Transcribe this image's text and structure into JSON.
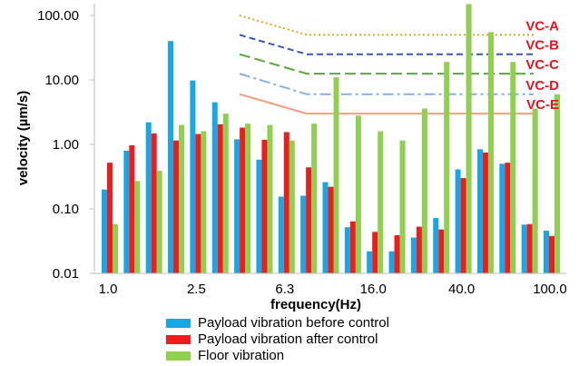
{
  "chart_data": {
    "type": "bar",
    "xlabel": "frequency(Hz)",
    "ylabel": "velocity (µm/s)",
    "yscale": "log",
    "ylim": [
      0.01,
      100
    ],
    "ytick_labels": [
      "0.01",
      "0.10",
      "1.00",
      "10.00",
      "100.00"
    ],
    "ytick_values": [
      0.01,
      0.1,
      1,
      10,
      100
    ],
    "xtick_labels": [
      "1.0",
      "2.5",
      "6.3",
      "16.0",
      "40.0",
      "100.0"
    ],
    "xtick_band_index": [
      0,
      4,
      8,
      12,
      16,
      20
    ],
    "band_count": 21,
    "grid": "none",
    "legend_placement": "bottom",
    "series": [
      {
        "name": "Payload vibration before control",
        "color": "#17a7e7",
        "values": [
          0.2,
          0.8,
          2.2,
          40,
          9.8,
          4.5,
          1.2,
          0.58,
          0.155,
          0.16,
          0.26,
          0.052,
          0.022,
          0.022,
          0.036,
          0.072,
          0.41,
          0.84,
          0.5,
          0.057,
          0.046
        ]
      },
      {
        "name": "Payload vibration after control",
        "color": "#ee1c1c",
        "values": [
          0.52,
          0.97,
          1.48,
          1.15,
          1.45,
          2.05,
          1.82,
          1.18,
          1.55,
          0.44,
          0.22,
          0.064,
          0.044,
          0.039,
          0.053,
          0.048,
          0.3,
          0.75,
          0.52,
          0.058,
          0.038
        ]
      },
      {
        "name": "Floor vibration",
        "color": "#8fd14f",
        "values": [
          0.058,
          0.27,
          0.39,
          2.0,
          1.6,
          3.0,
          2.1,
          2.0,
          1.15,
          2.1,
          11.0,
          2.8,
          1.6,
          1.15,
          3.6,
          19.0,
          150,
          55,
          19.0,
          3.6,
          6.0
        ]
      }
    ],
    "criteria": [
      {
        "name": "VC-A",
        "color": "#f0a020",
        "dash": "2,3",
        "start_value": 100,
        "flat_value": 50
      },
      {
        "name": "VC-B",
        "color": "#3a5ab0",
        "dash": "7,4",
        "start_value": 50,
        "flat_value": 25
      },
      {
        "name": "VC-C",
        "color": "#58a844",
        "dash": "12,5",
        "start_value": 25,
        "flat_value": 12.5
      },
      {
        "name": "VC-D",
        "color": "#8ab0e0",
        "dash": "12,4,3,4",
        "start_value": 12.5,
        "flat_value": 6
      },
      {
        "name": "VC-E",
        "color": "#f0a080",
        "dash": "",
        "start_value": 6,
        "flat_value": 3
      }
    ]
  }
}
